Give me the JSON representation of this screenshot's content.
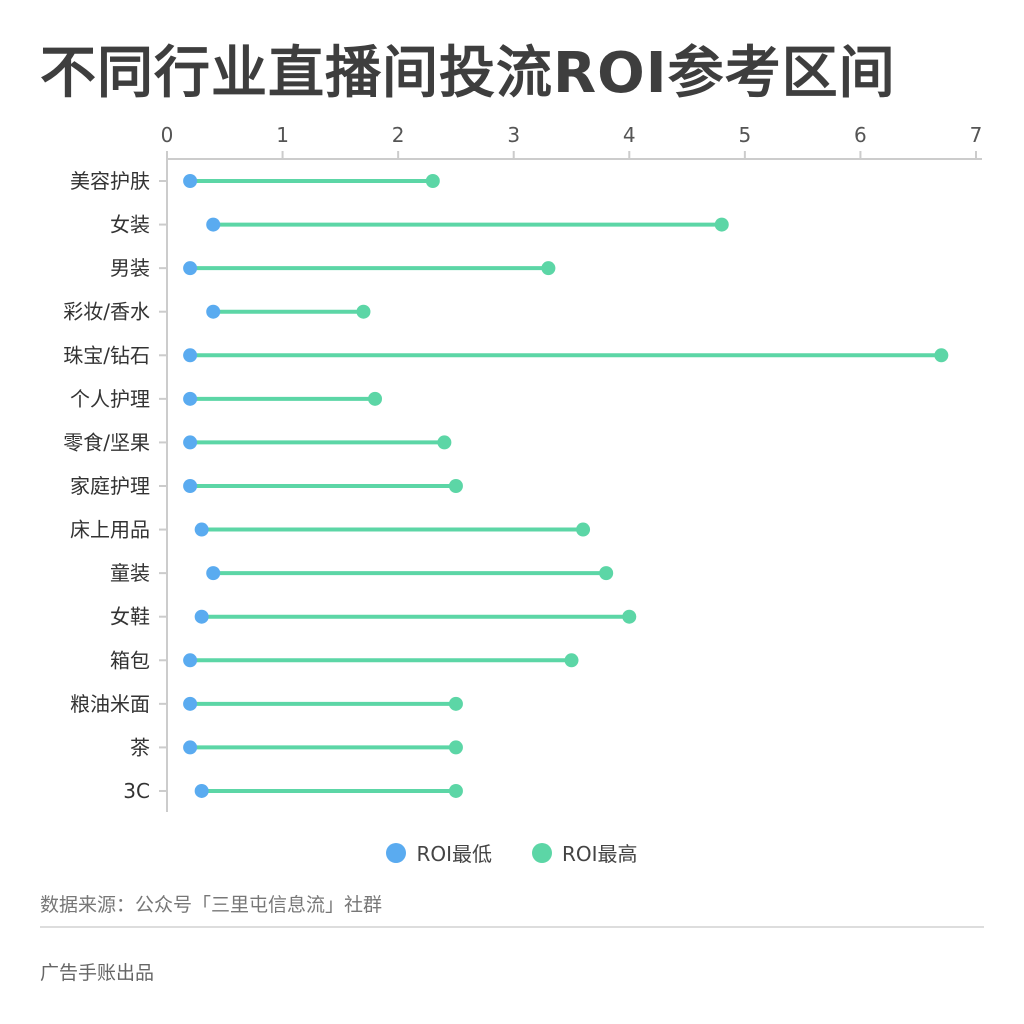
{
  "chart_data": {
    "type": "dumbbell",
    "title": "不同行业直播间投流ROI参考区间",
    "categories": [
      "美容护肤",
      "女装",
      "男装",
      "彩妆/香水",
      "珠宝/钻石",
      "个人护理",
      "零食/坚果",
      "家庭护理",
      "床上用品",
      "童装",
      "女鞋",
      "箱包",
      "粮油米面",
      "茶",
      "3C"
    ],
    "series": [
      {
        "name": "ROI最低",
        "color": "#5aabf0",
        "values": [
          0.2,
          0.4,
          0.2,
          0.4,
          0.2,
          0.2,
          0.2,
          0.2,
          0.3,
          0.4,
          0.3,
          0.2,
          0.2,
          0.2,
          0.3
        ]
      },
      {
        "name": "ROI最高",
        "color": "#5cd6a6",
        "values": [
          2.3,
          4.8,
          3.3,
          1.7,
          6.7,
          1.8,
          2.4,
          2.5,
          3.6,
          3.8,
          4.0,
          3.5,
          2.5,
          2.5,
          2.5
        ]
      }
    ],
    "xlim": [
      0,
      7
    ],
    "xticks": [
      "0",
      "1",
      "2",
      "3",
      "4",
      "5",
      "6",
      "7"
    ],
    "xaxis_position": "top",
    "legend_position": "bottom-center",
    "grid": false
  },
  "footer": {
    "source": "数据来源：公众号「三里屯信息流」社群",
    "credit": "广告手账出品"
  }
}
